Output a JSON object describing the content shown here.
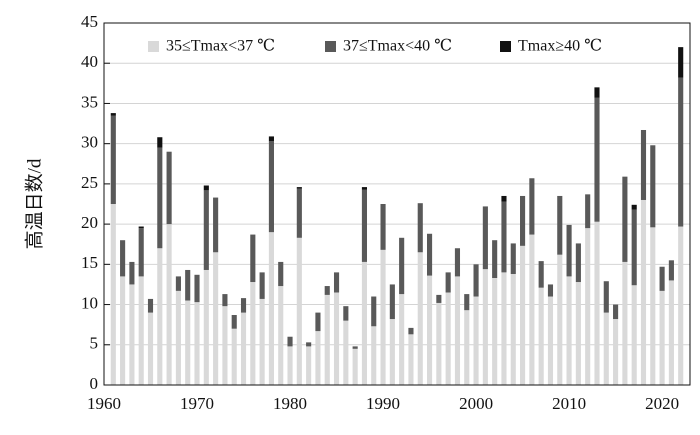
{
  "chart_data": {
    "type": "stacked-bar",
    "y_label": "高温日数/d",
    "x": [
      1961,
      1962,
      1963,
      1964,
      1965,
      1966,
      1967,
      1968,
      1969,
      1970,
      1971,
      1972,
      1973,
      1974,
      1975,
      1976,
      1977,
      1978,
      1979,
      1980,
      1981,
      1982,
      1983,
      1984,
      1985,
      1986,
      1987,
      1988,
      1989,
      1990,
      1991,
      1992,
      1993,
      1994,
      1995,
      1996,
      1997,
      1998,
      1999,
      2000,
      2001,
      2002,
      2003,
      2004,
      2005,
      2006,
      2007,
      2008,
      2009,
      2010,
      2011,
      2012,
      2013,
      2014,
      2015,
      2016,
      2017,
      2018,
      2019,
      2020,
      2021,
      2022
    ],
    "series": [
      {
        "name": "35≤Tmax<37 ℃",
        "color": "#d9d9d9",
        "values": [
          22.5,
          13.5,
          12.5,
          13.5,
          9,
          17,
          20,
          11.7,
          10.5,
          10.3,
          14.3,
          16.5,
          9.8,
          7,
          9,
          12.8,
          10.7,
          19,
          12.3,
          4.8,
          18.3,
          4.8,
          6.7,
          11.2,
          11.5,
          8,
          4.5,
          15.3,
          7.3,
          16.8,
          8.2,
          11.3,
          6.3,
          16.5,
          13.6,
          10.2,
          11.5,
          13.5,
          9.3,
          11,
          14.4,
          13.3,
          14,
          13.8,
          17.3,
          18.7,
          12.1,
          11,
          16.2,
          13.5,
          12.8,
          19.5,
          20.3,
          9,
          8.2,
          15.3,
          12.4,
          23,
          19.6,
          11.7,
          13,
          19.7
        ]
      },
      {
        "name": "37≤Tmax<40 ℃",
        "color": "#595959",
        "values": [
          11,
          4.5,
          2.8,
          6,
          1.7,
          12.5,
          9,
          1.8,
          3.8,
          3.4,
          9.9,
          6.8,
          1.5,
          1.7,
          1.8,
          5.9,
          3.3,
          11.3,
          3,
          1.2,
          6.1,
          0.5,
          2.3,
          1.1,
          2.5,
          1.8,
          0.3,
          9,
          3.7,
          5.7,
          4.3,
          7,
          0.8,
          6.1,
          5.2,
          1,
          2.5,
          3.5,
          2,
          4,
          7.8,
          4.7,
          8.8,
          3.8,
          6.2,
          7,
          3.3,
          1.5,
          7.3,
          6.4,
          4.8,
          4.2,
          15.4,
          3.9,
          1.8,
          10.6,
          9.4,
          8.7,
          10.2,
          3,
          2.5,
          18.5
        ]
      },
      {
        "name": "Tmax≥40 ℃",
        "color": "#111111",
        "values": [
          0.3,
          0,
          0,
          0.2,
          0,
          1.3,
          0,
          0,
          0,
          0,
          0.6,
          0,
          0,
          0,
          0,
          0,
          0,
          0.6,
          0,
          0,
          0.2,
          0,
          0,
          0,
          0,
          0,
          0,
          0.3,
          0,
          0,
          0,
          0,
          0,
          0,
          0,
          0,
          0,
          0,
          0,
          0,
          0,
          0,
          0.7,
          0,
          0,
          0,
          0,
          0,
          0,
          0,
          0,
          0,
          1.3,
          0,
          0,
          0,
          0.6,
          0,
          0,
          0,
          0,
          3.8
        ]
      }
    ],
    "xlim": [
      1960,
      2023
    ],
    "xticks": [
      1960,
      1970,
      1980,
      1990,
      2000,
      2010,
      2020
    ],
    "ylim": [
      0,
      45
    ],
    "yticks": [
      0,
      5,
      10,
      15,
      20,
      25,
      30,
      35,
      40,
      45
    ],
    "grid": true,
    "legend": "top"
  }
}
